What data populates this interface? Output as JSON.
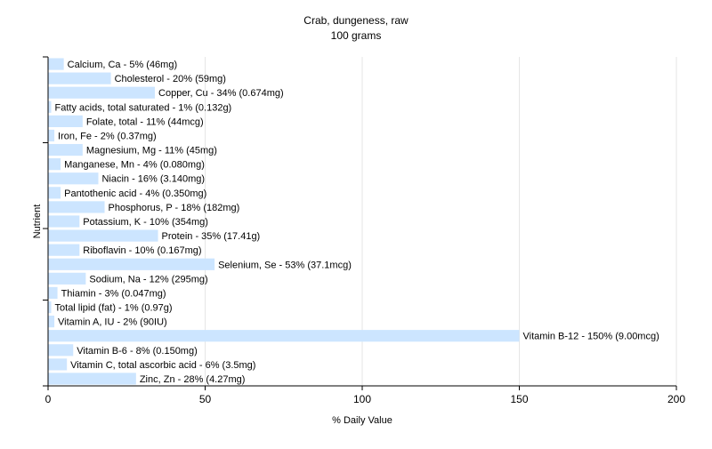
{
  "chart_data": {
    "type": "bar",
    "orientation": "horizontal",
    "title": "Crab, dungeness, raw",
    "subtitle": "100 grams",
    "xlabel": "% Daily Value",
    "ylabel": "Nutrient",
    "xlim": [
      0,
      200
    ],
    "xticks": [
      "0",
      "50",
      "100",
      "150",
      "200"
    ],
    "grid": true,
    "bar_color": "#cce5ff",
    "categories": [
      "Calcium, Ca",
      "Cholesterol",
      "Copper, Cu",
      "Fatty acids, total saturated",
      "Folate, total",
      "Iron, Fe",
      "Magnesium, Mg",
      "Manganese, Mn",
      "Niacin",
      "Pantothenic acid",
      "Phosphorus, P",
      "Potassium, K",
      "Protein",
      "Riboflavin",
      "Selenium, Se",
      "Sodium, Na",
      "Thiamin",
      "Total lipid (fat)",
      "Vitamin A, IU",
      "Vitamin B-12",
      "Vitamin B-6",
      "Vitamin C, total ascorbic acid",
      "Zinc, Zn"
    ],
    "values": [
      5,
      20,
      34,
      1,
      11,
      2,
      11,
      4,
      16,
      4,
      18,
      10,
      35,
      10,
      53,
      12,
      3,
      1,
      2,
      150,
      8,
      6,
      28
    ],
    "labels": [
      "Calcium, Ca - 5% (46mg)",
      "Cholesterol - 20% (59mg)",
      "Copper, Cu - 34% (0.674mg)",
      "Fatty acids, total saturated - 1% (0.132g)",
      "Folate, total - 11% (44mcg)",
      "Iron, Fe - 2% (0.37mg)",
      "Magnesium, Mg - 11% (45mg)",
      "Manganese, Mn - 4% (0.080mg)",
      "Niacin - 16% (3.140mg)",
      "Pantothenic acid - 4% (0.350mg)",
      "Phosphorus, P - 18% (182mg)",
      "Potassium, K - 10% (354mg)",
      "Protein - 35% (17.41g)",
      "Riboflavin - 10% (0.167mg)",
      "Selenium, Se - 53% (37.1mcg)",
      "Sodium, Na - 12% (295mg)",
      "Thiamin - 3% (0.047mg)",
      "Total lipid (fat) - 1% (0.97g)",
      "Vitamin A, IU - 2% (90IU)",
      "Vitamin B-12 - 150% (9.00mcg)",
      "Vitamin B-6 - 8% (0.150mg)",
      "Vitamin C, total ascorbic acid - 6% (3.5mg)",
      "Zinc, Zn - 28% (4.27mg)"
    ]
  }
}
